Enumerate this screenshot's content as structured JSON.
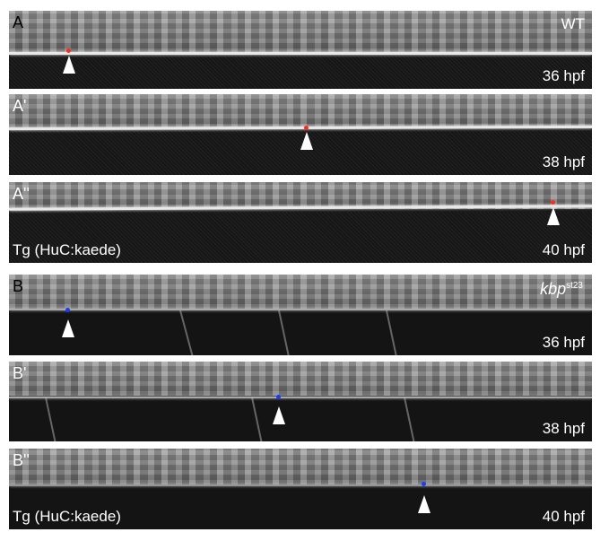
{
  "colors": {
    "wt_marker": "#ff2a1a",
    "mutant_marker": "#1a3cff"
  },
  "panels": [
    {
      "letter": "A",
      "time": "36 hpf",
      "genotype": "WT",
      "marker": "wt"
    },
    {
      "letter": "A'",
      "time": "38 hpf",
      "marker": "wt"
    },
    {
      "letter": "A''",
      "time": "40 hpf",
      "transgene": "Tg (HuC:kaede)",
      "marker": "wt"
    },
    {
      "letter": "B",
      "time": "36 hpf",
      "genotype": "kbp",
      "allele": "st23",
      "marker": "mutant"
    },
    {
      "letter": "B'",
      "time": "38 hpf",
      "marker": "mutant"
    },
    {
      "letter": "B''",
      "time": "40 hpf",
      "transgene": "Tg (HuC:kaede)",
      "marker": "mutant"
    }
  ]
}
